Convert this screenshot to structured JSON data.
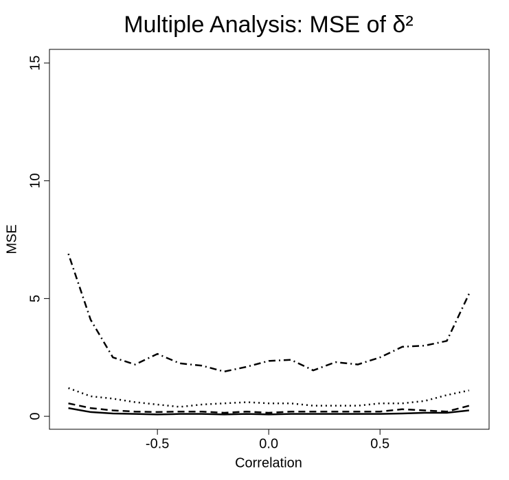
{
  "chart_data": {
    "type": "line",
    "title": "Multiple Analysis: MSE of δ²",
    "xlabel": "Correlation",
    "ylabel": "MSE",
    "x": [
      -0.9,
      -0.8,
      -0.7,
      -0.6,
      -0.5,
      -0.4,
      -0.3,
      -0.2,
      -0.1,
      0.0,
      0.1,
      0.2,
      0.3,
      0.4,
      0.5,
      0.6,
      0.7,
      0.8,
      0.9
    ],
    "series": [
      {
        "color": "#000000",
        "linestyle": "solid",
        "values": [
          0.35,
          0.18,
          0.12,
          0.1,
          0.08,
          0.1,
          0.1,
          0.08,
          0.1,
          0.08,
          0.1,
          0.1,
          0.1,
          0.1,
          0.1,
          0.12,
          0.15,
          0.15,
          0.25
        ]
      },
      {
        "color": "#000000",
        "linestyle": "dashed",
        "values": [
          0.55,
          0.35,
          0.25,
          0.2,
          0.18,
          0.2,
          0.2,
          0.15,
          0.2,
          0.15,
          0.2,
          0.2,
          0.2,
          0.2,
          0.2,
          0.3,
          0.25,
          0.2,
          0.45
        ]
      },
      {
        "color": "#000000",
        "linestyle": "dotted",
        "values": [
          1.2,
          0.85,
          0.75,
          0.6,
          0.5,
          0.4,
          0.5,
          0.55,
          0.6,
          0.55,
          0.55,
          0.45,
          0.45,
          0.45,
          0.55,
          0.55,
          0.65,
          0.9,
          1.1
        ]
      },
      {
        "color": "#000000",
        "linestyle": "dashdot",
        "values": [
          6.9,
          4.1,
          2.5,
          2.2,
          2.65,
          2.25,
          2.15,
          1.9,
          2.1,
          2.35,
          2.4,
          1.95,
          2.3,
          2.2,
          2.5,
          2.95,
          3.0,
          3.2,
          5.2
        ]
      }
    ],
    "xlim": [
      -0.985,
      0.99
    ],
    "ylim": [
      -0.55,
      15.58
    ],
    "xticks": [
      -0.5,
      {
        "value": 0,
        "label": "0.0"
      },
      0.5
    ],
    "yticks": [
      0,
      5,
      10,
      15
    ]
  }
}
